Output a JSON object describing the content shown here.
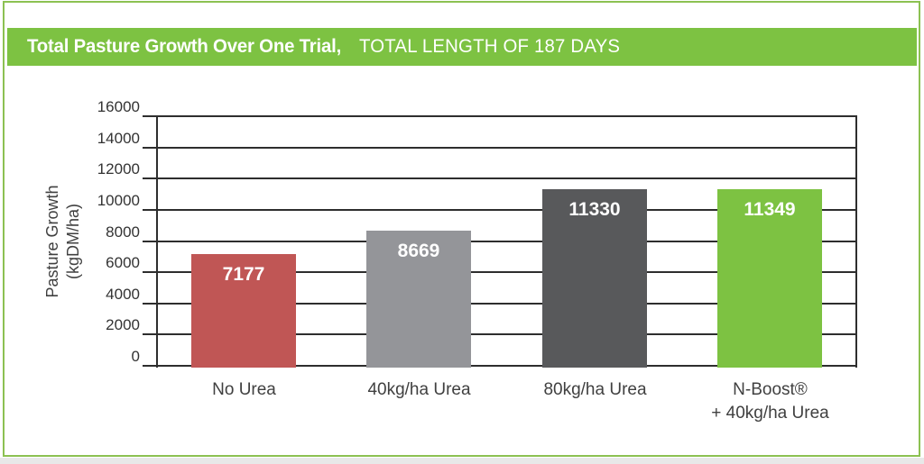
{
  "header": {
    "title_bold": "Total Pasture Growth Over One Trial,",
    "subtitle": "TOTAL LENGTH OF 187 DAYS"
  },
  "colors": {
    "brand_green": "#7DC242",
    "border_green": "#8CC152",
    "axis": "#2E2E2E",
    "text": "#404040",
    "value_label": "#FFFFFF"
  },
  "chart_data": {
    "type": "bar",
    "title": "Total Pasture Growth Over One Trial, TOTAL LENGTH OF 187 DAYS",
    "xlabel": "",
    "ylabel": "Pasture Growth (kgDM/ha)",
    "ylabel_lines": [
      "Pasture Growth",
      "(kgDM/ha)"
    ],
    "ylim": [
      0,
      16000
    ],
    "ytick_step": 2000,
    "yticks": [
      0,
      2000,
      4000,
      6000,
      8000,
      10000,
      12000,
      14000,
      16000
    ],
    "grid": true,
    "legend": "none",
    "categories": [
      "No Urea",
      "40kg/ha Urea",
      "80kg/ha Urea",
      "N-Boost® + 40kg/ha Urea"
    ],
    "category_lines": [
      [
        "No Urea"
      ],
      [
        "40kg/ha Urea"
      ],
      [
        "80kg/ha Urea"
      ],
      [
        "N-Boost®",
        "+ 40kg/ha Urea"
      ]
    ],
    "values": [
      7177,
      8669,
      11330,
      11349
    ],
    "bar_colors": [
      "#C05655",
      "#949599",
      "#58595B",
      "#7DC242"
    ]
  }
}
